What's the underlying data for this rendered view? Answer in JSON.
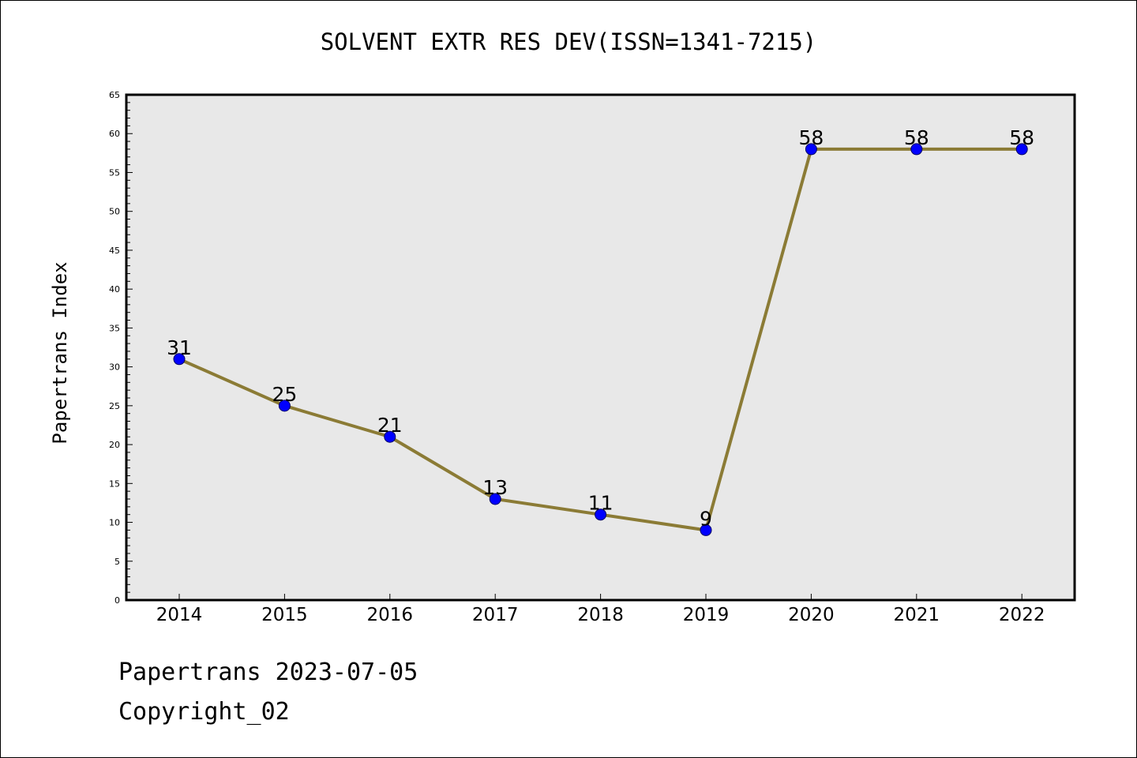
{
  "chart_data": {
    "type": "line",
    "title": "SOLVENT EXTR RES DEV(ISSN=1341-7215)",
    "xlabel": "",
    "ylabel": "Papertrans Index",
    "categories": [
      "2014",
      "2015",
      "2016",
      "2017",
      "2018",
      "2019",
      "2020",
      "2021",
      "2022"
    ],
    "series": [
      {
        "values": [
          31,
          25,
          21,
          13,
          11,
          9,
          58,
          58,
          58
        ],
        "data_labels": [
          "31",
          "25",
          "21",
          "13",
          "11",
          "9",
          "58",
          "58",
          "58"
        ]
      }
    ],
    "ylim": [
      0,
      65
    ],
    "yticks": [
      0,
      5,
      10,
      15,
      20,
      25,
      30,
      35,
      40,
      45,
      50,
      55,
      60,
      65
    ],
    "ytick_labels": [
      "0",
      "5",
      "10",
      "15",
      "20",
      "25",
      "30",
      "35",
      "40",
      "45",
      "50",
      "55",
      "60",
      "65"
    ],
    "grid": false,
    "legend": "none",
    "colors": {
      "line": "#8b7b35",
      "marker_fill": "#0000ff",
      "marker_edge": "#000066",
      "plot_background": "#e8e8e8"
    }
  },
  "footer": {
    "line1": "Papertrans 2023-07-05",
    "line2": "Copyright_02"
  }
}
